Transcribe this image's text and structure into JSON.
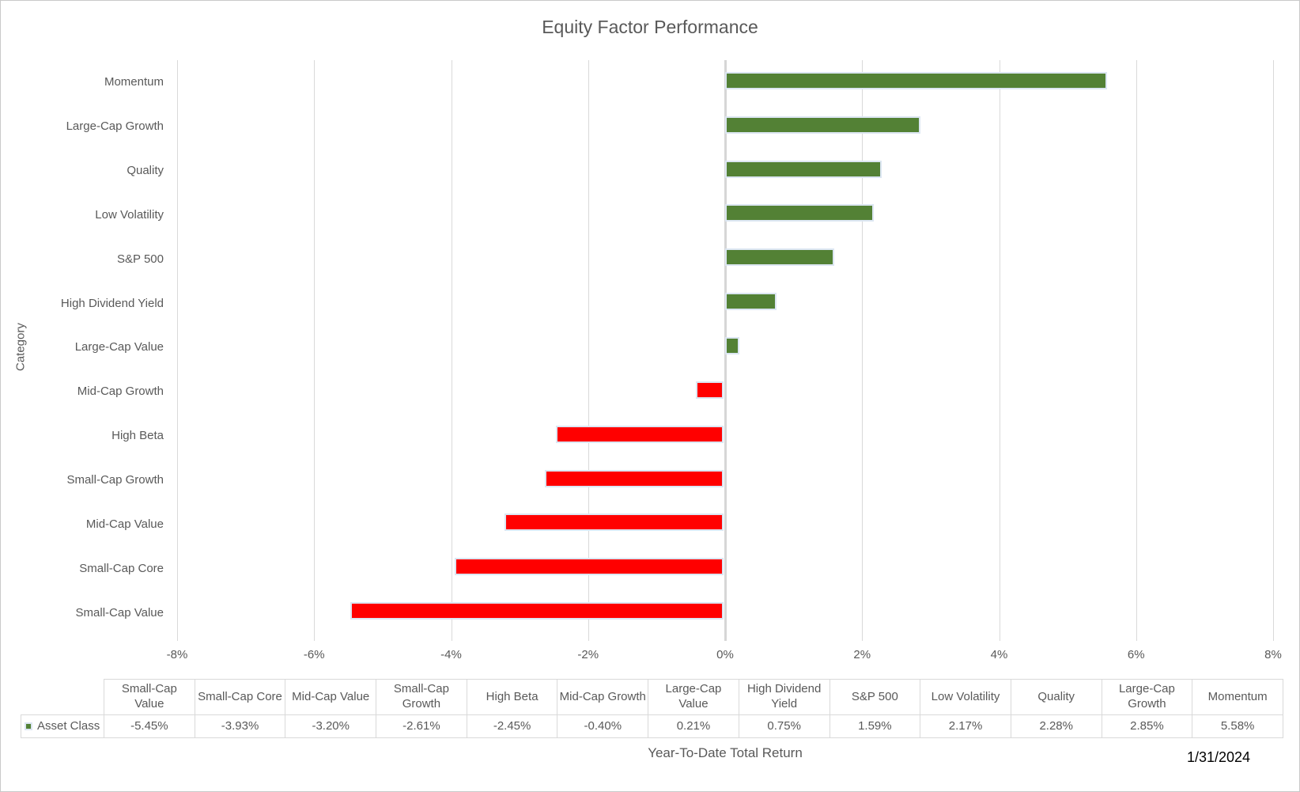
{
  "page": {
    "date_label": "1/31/2024"
  },
  "chart_data": {
    "type": "bar",
    "orientation": "horizontal",
    "title": "Equity Factor Performance",
    "xlabel": "Year-To-Date Total Return",
    "ylabel": "Category",
    "series_name": "Asset Class",
    "xlim": [
      -8,
      8
    ],
    "x_tick_labels": [
      "-8%",
      "-6%",
      "-4%",
      "-2%",
      "0%",
      "2%",
      "4%",
      "6%",
      "8%"
    ],
    "grid": "vertical-only",
    "legend_position": "bottom-table-left",
    "positive_color": "#538135",
    "negative_color": "#ff0000",
    "bar_border_color": "#dce6f2",
    "items_ascending": [
      {
        "category": "Small-Cap Value",
        "value": -5.45,
        "display": "-5.45%"
      },
      {
        "category": "Small-Cap Core",
        "value": -3.93,
        "display": "-3.93%"
      },
      {
        "category": "Mid-Cap Value",
        "value": -3.2,
        "display": "-3.20%"
      },
      {
        "category": "Small-Cap Growth",
        "value": -2.61,
        "display": "-2.61%"
      },
      {
        "category": "High Beta",
        "value": -2.45,
        "display": "-2.45%"
      },
      {
        "category": "Mid-Cap Growth",
        "value": -0.4,
        "display": "-0.40%"
      },
      {
        "category": "Large-Cap Value",
        "value": 0.21,
        "display": "0.21%"
      },
      {
        "category": "High Dividend Yield",
        "value": 0.75,
        "display": "0.75%"
      },
      {
        "category": "S&P 500",
        "value": 1.59,
        "display": "1.59%"
      },
      {
        "category": "Low Volatility",
        "value": 2.17,
        "display": "2.17%"
      },
      {
        "category": "Quality",
        "value": 2.28,
        "display": "2.28%"
      },
      {
        "category": "Large-Cap Growth",
        "value": 2.85,
        "display": "2.85%"
      },
      {
        "category": "Momentum",
        "value": 5.58,
        "display": "5.58%"
      }
    ],
    "category_order_top_to_bottom": [
      "Momentum",
      "Large-Cap Growth",
      "Quality",
      "Low Volatility",
      "S&P 500",
      "High Dividend Yield",
      "Large-Cap Value",
      "Mid-Cap Growth",
      "High Beta",
      "Small-Cap Growth",
      "Mid-Cap Value",
      "Small-Cap Core",
      "Small-Cap Value"
    ]
  },
  "colors": {
    "gridline": "#d9d9d9",
    "zero_line": "#d6d6d6",
    "text": "#595959",
    "table_border": "#d9d9d9",
    "date_text": "#000000"
  }
}
